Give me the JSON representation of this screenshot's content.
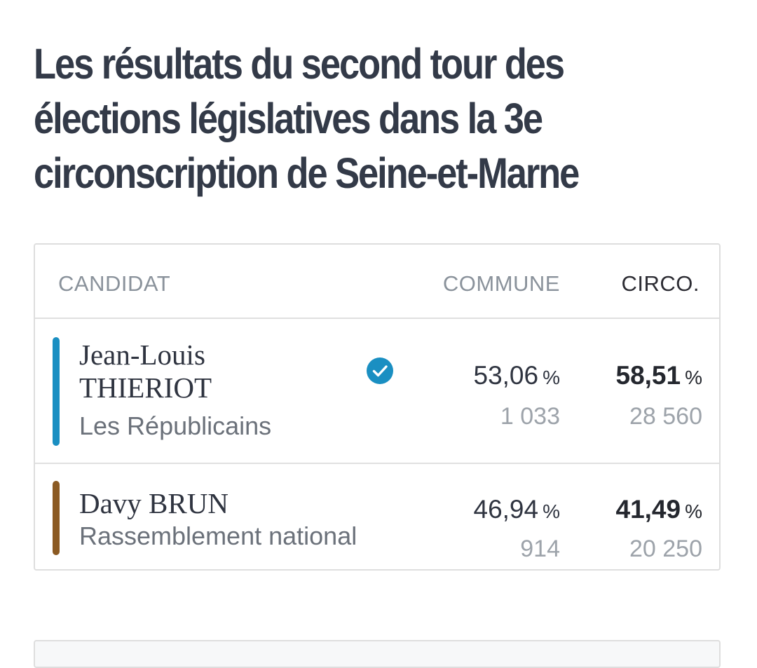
{
  "title": {
    "line1": "Les résultats du second tour des",
    "line2": "élections législatives dans la 3e",
    "line3": "circonscription de Seine-et-Marne"
  },
  "table": {
    "headers": {
      "candidate": "CANDIDAT",
      "commune": "COMMUNE",
      "circo": "CIRCO."
    },
    "rows": [
      {
        "name_line1": "Jean-Louis",
        "name_line2": "THIERIOT",
        "party": "Les Républicains",
        "party_color": "#1a8fc2",
        "elected": true,
        "elected_icon": "check-circle-icon",
        "commune_pct": "53,06",
        "commune_votes": "1 033",
        "circo_pct": "58,51",
        "circo_votes": "28 560"
      },
      {
        "name_line1": "Davy BRUN",
        "party": "Rassemblement national",
        "party_color": "#8b5a23",
        "elected": false,
        "commune_pct": "46,94",
        "commune_votes": "914",
        "circo_pct": "41,49",
        "circo_votes": "20 250"
      }
    ],
    "percent_sign": "%"
  },
  "colors": {
    "title": "#333a48",
    "elected_badge": "#1a8fc2",
    "border": "#dedede"
  }
}
